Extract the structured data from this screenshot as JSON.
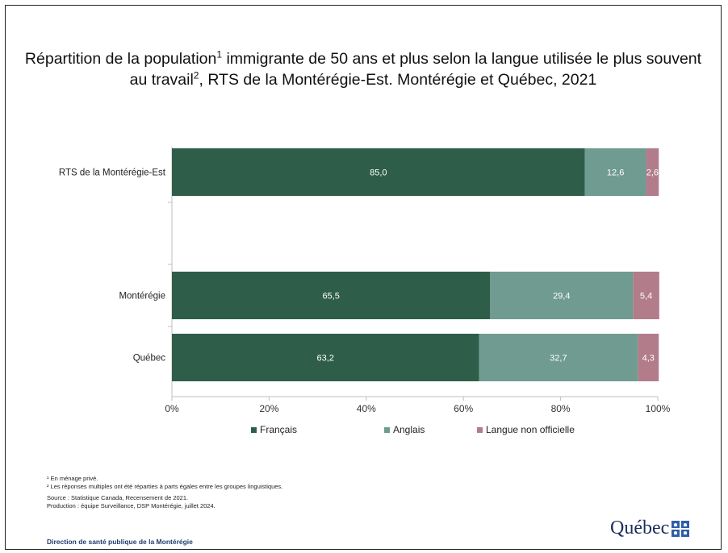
{
  "slide": {
    "title_part1": "Répartition de la population",
    "title_sup1": "1",
    "title_part2": " immigrante de 50 ans et plus selon la langue utilisée le plus souvent au travail",
    "title_sup2": "2",
    "title_part3": ", RTS de la Montérégie-Est. Montérégie et Québec, 2021",
    "notes": [
      "¹ En ménage privé.",
      "² Les réponses multiples ont été réparties à parts égales entre les groupes linguistiques.",
      "Source : Statistique Canada, Recensement de 2021.",
      "Production : équipe Surveillance, DSP Montérégie, juillet 2024."
    ],
    "footer": "Direction de santé publique de la Montérégie",
    "logo_text": "Québec",
    "logo_icon": "quebec-flag-icon"
  },
  "chart_data": {
    "type": "bar",
    "orientation": "horizontal",
    "stacked": "percent",
    "categories": [
      "RTS de la Montérégie-Est",
      "",
      "Montérégie",
      "Québec"
    ],
    "series": [
      {
        "name": "Français",
        "color": "#2e5e4a",
        "values": [
          85.0,
          null,
          65.5,
          63.2
        ],
        "labels": [
          "85,0",
          "",
          "65,5",
          "63,2"
        ]
      },
      {
        "name": "Anglais",
        "color": "#6f9b91",
        "values": [
          12.6,
          null,
          29.4,
          32.7
        ],
        "labels": [
          "12,6",
          "",
          "29,4",
          "32,7"
        ]
      },
      {
        "name": "Langue non officielle",
        "color": "#b27c8a",
        "values": [
          2.6,
          null,
          5.4,
          4.3
        ],
        "labels": [
          "2,6",
          "",
          "5,4",
          "4,3"
        ]
      }
    ],
    "xlim": [
      0,
      100
    ],
    "xticks": [
      "0%",
      "20%",
      "40%",
      "60%",
      "80%",
      "100%"
    ],
    "grid": false,
    "legend_position": "bottom",
    "xlabel": "",
    "ylabel": ""
  }
}
